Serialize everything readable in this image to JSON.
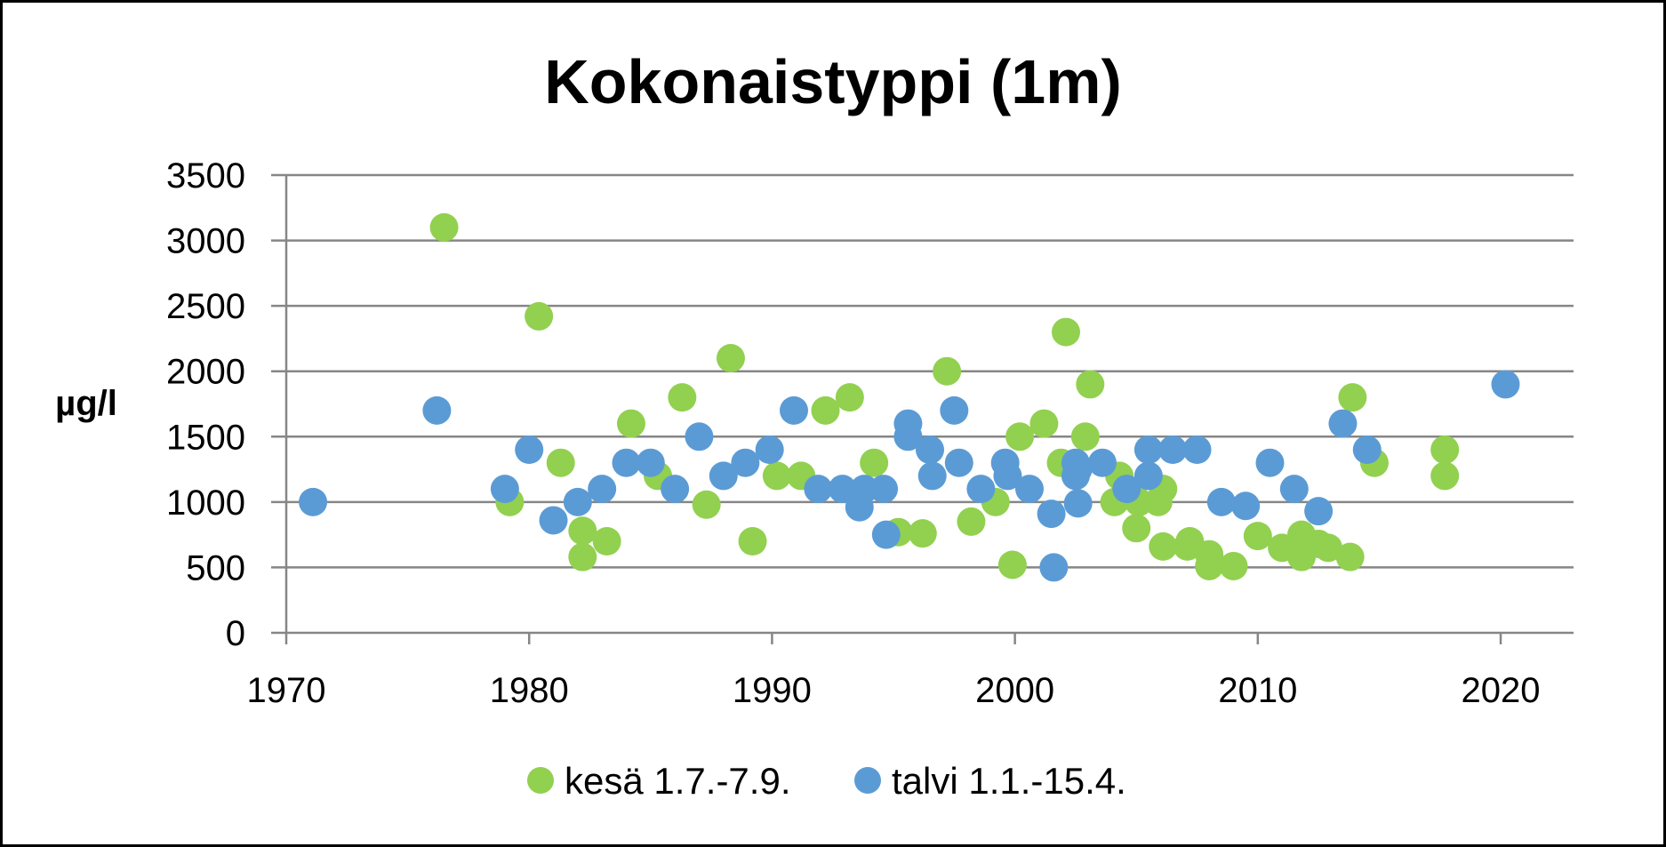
{
  "chart_data": {
    "type": "scatter",
    "title": "Kokonaistyppi (1m)",
    "ylabel": "µg/l",
    "xlabel": "",
    "xlim": [
      1970,
      2023
    ],
    "ylim": [
      0,
      3500
    ],
    "x_ticks": [
      1970,
      1980,
      1990,
      2000,
      2010,
      2020
    ],
    "y_ticks": [
      0,
      500,
      1000,
      1500,
      2000,
      2500,
      3000,
      3500
    ],
    "grid": true,
    "legend": "bottom",
    "series": [
      {
        "name": "kesä 1.7.-7.9.",
        "color": "#92D050",
        "points": [
          [
            1976.5,
            3100
          ],
          [
            1979.2,
            1000
          ],
          [
            1980.4,
            2420
          ],
          [
            1981.3,
            1300
          ],
          [
            1982.2,
            780
          ],
          [
            1982.2,
            580
          ],
          [
            1983.2,
            700
          ],
          [
            1984.2,
            1600
          ],
          [
            1985.3,
            1200
          ],
          [
            1986.3,
            1800
          ],
          [
            1987.3,
            980
          ],
          [
            1988.3,
            2100
          ],
          [
            1989.2,
            700
          ],
          [
            1990.2,
            1200
          ],
          [
            1991.2,
            1200
          ],
          [
            1992.2,
            1700
          ],
          [
            1993.2,
            1800
          ],
          [
            1994.2,
            1300
          ],
          [
            1995.2,
            770
          ],
          [
            1996.2,
            760
          ],
          [
            1997.2,
            2000
          ],
          [
            1998.2,
            850
          ],
          [
            1999.2,
            1000
          ],
          [
            1999.9,
            520
          ],
          [
            2000.2,
            1500
          ],
          [
            2001.2,
            1600
          ],
          [
            2001.9,
            1300
          ],
          [
            2002.1,
            2300
          ],
          [
            2002.9,
            1500
          ],
          [
            2003.1,
            1900
          ],
          [
            2004.1,
            1000
          ],
          [
            2004.3,
            1200
          ],
          [
            2005.0,
            800
          ],
          [
            2005.1,
            1000
          ],
          [
            2005.9,
            1000
          ],
          [
            2006.1,
            1100
          ],
          [
            2006.1,
            660
          ],
          [
            2007.1,
            660
          ],
          [
            2007.2,
            700
          ],
          [
            2008.0,
            600
          ],
          [
            2008.0,
            510
          ],
          [
            2009.0,
            510
          ],
          [
            2010.0,
            740
          ],
          [
            2011.0,
            650
          ],
          [
            2011.8,
            750
          ],
          [
            2011.8,
            580
          ],
          [
            2012.5,
            680
          ],
          [
            2012.9,
            650
          ],
          [
            2013.8,
            580
          ],
          [
            2013.9,
            1800
          ],
          [
            2014.8,
            1300
          ],
          [
            2017.7,
            1400
          ],
          [
            2017.7,
            1200
          ]
        ]
      },
      {
        "name": "talvi 1.1.-15.4.",
        "color": "#5B9BD5",
        "points": [
          [
            1971.1,
            1000
          ],
          [
            1976.2,
            1700
          ],
          [
            1979.0,
            1100
          ],
          [
            1980.0,
            1400
          ],
          [
            1981.0,
            860
          ],
          [
            1982.0,
            1000
          ],
          [
            1983.0,
            1100
          ],
          [
            1984.0,
            1300
          ],
          [
            1985.0,
            1300
          ],
          [
            1986.0,
            1100
          ],
          [
            1987.0,
            1500
          ],
          [
            1988.0,
            1200
          ],
          [
            1988.9,
            1300
          ],
          [
            1989.9,
            1400
          ],
          [
            1990.9,
            1700
          ],
          [
            1991.9,
            1100
          ],
          [
            1992.9,
            1100
          ],
          [
            1993.6,
            960
          ],
          [
            1993.8,
            1100
          ],
          [
            1994.6,
            1100
          ],
          [
            1994.7,
            750
          ],
          [
            1995.6,
            1600
          ],
          [
            1995.6,
            1500
          ],
          [
            1996.5,
            1400
          ],
          [
            1996.6,
            1200
          ],
          [
            1997.5,
            1700
          ],
          [
            1997.7,
            1300
          ],
          [
            1998.6,
            1100
          ],
          [
            1999.6,
            1300
          ],
          [
            1999.7,
            1200
          ],
          [
            2000.6,
            1100
          ],
          [
            2001.5,
            910
          ],
          [
            2001.6,
            500
          ],
          [
            2002.5,
            1300
          ],
          [
            2002.5,
            1200
          ],
          [
            2002.6,
            1250
          ],
          [
            2002.6,
            990
          ],
          [
            2003.6,
            1300
          ],
          [
            2004.6,
            1100
          ],
          [
            2005.5,
            1400
          ],
          [
            2005.5,
            1200
          ],
          [
            2006.5,
            1400
          ],
          [
            2007.5,
            1400
          ],
          [
            2008.5,
            1000
          ],
          [
            2009.5,
            970
          ],
          [
            2010.5,
            1300
          ],
          [
            2011.5,
            1100
          ],
          [
            2012.5,
            930
          ],
          [
            2013.5,
            1600
          ],
          [
            2014.5,
            1400
          ],
          [
            2020.2,
            1900
          ]
        ]
      }
    ]
  }
}
